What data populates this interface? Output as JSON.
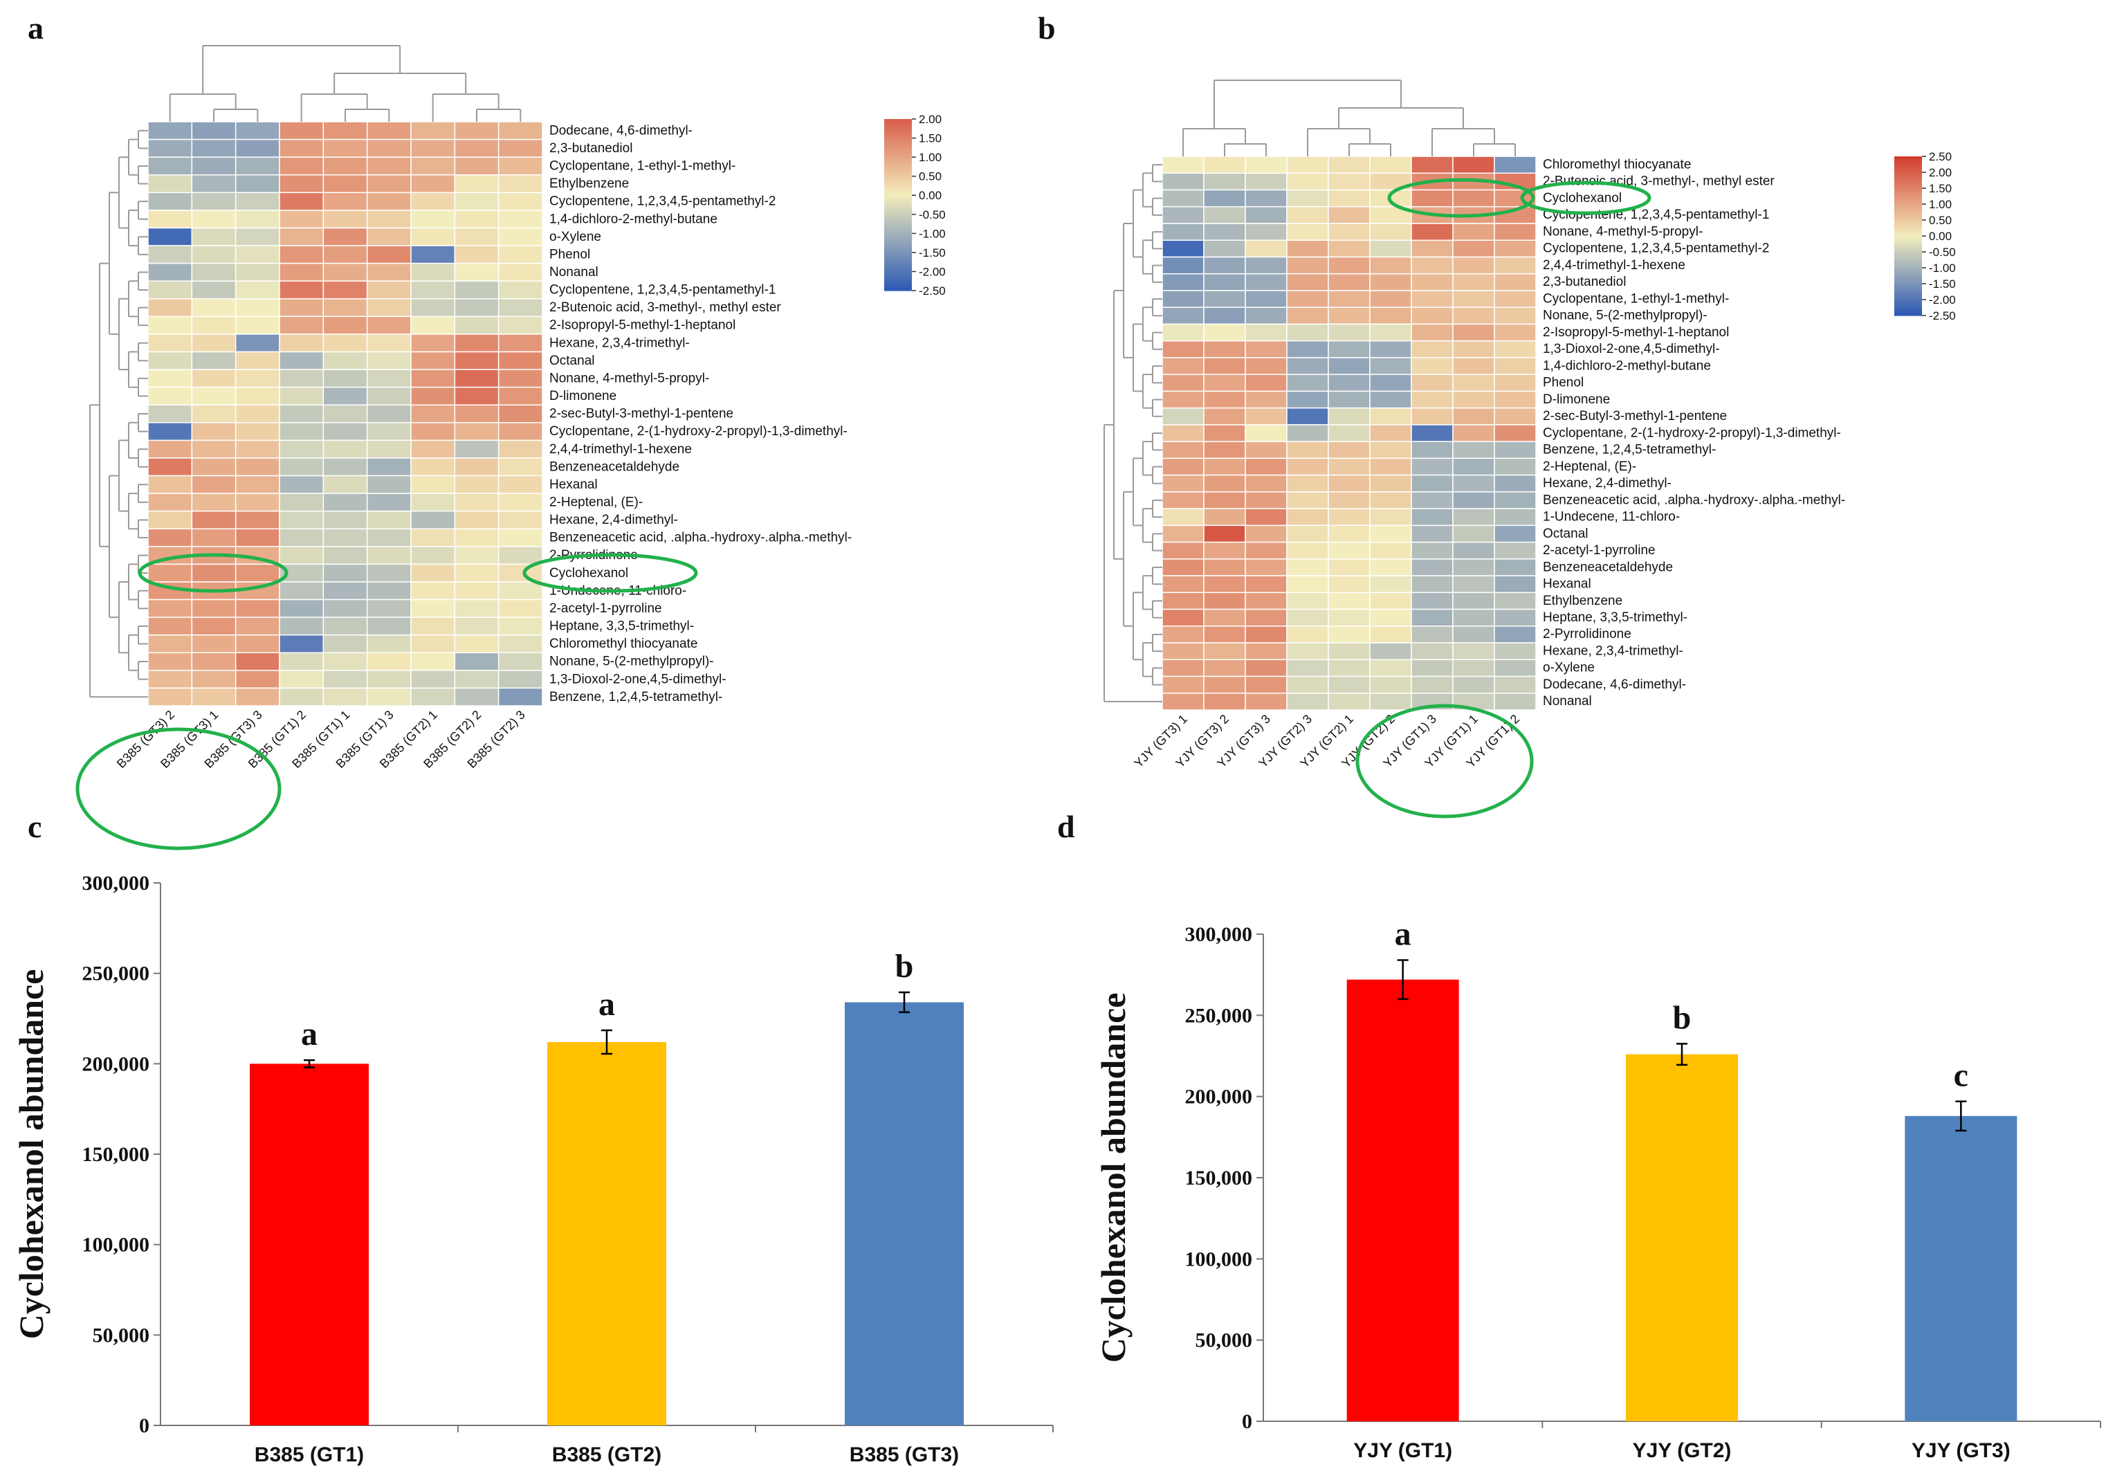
{
  "panels": {
    "a": "a",
    "b": "b",
    "c": "c",
    "d": "d"
  },
  "colors": {
    "low": "#2b58b4",
    "mid": "#f3edbd",
    "high": "#d23a2e",
    "highlight": "#22b14c",
    "gt1": "#ff0000",
    "gt2": "#ffc000",
    "gt3": "#4f81bd"
  },
  "chart_data": [
    {
      "id": "a",
      "type": "heatmap",
      "title": "",
      "colorbar": {
        "min": -2.5,
        "max": 2.0,
        "ticks": [
          "2.00",
          "1.50",
          "1.00",
          "0.50",
          "0.00",
          "-0.50",
          "-1.00",
          "-1.50",
          "-2.00",
          "-2.50"
        ]
      },
      "columns": [
        "B385 (GT3) 2",
        "B385 (GT3) 1",
        "B385 (GT3) 3",
        "B385 (GT1) 2",
        "B385 (GT1) 1",
        "B385 (GT1) 3",
        "B385 (GT2) 1",
        "B385 (GT2) 2",
        "B385 (GT2) 3"
      ],
      "rows": [
        "Dodecane, 4,6-dimethyl-",
        "2,3-butanediol",
        "Cyclopentane, 1-ethyl-1-methyl-",
        "Ethylbenzene",
        "Cyclopentene, 1,2,3,4,5-pentamethyl-2",
        "1,4-dichloro-2-methyl-butane",
        "o-Xylene",
        "Phenol",
        "Nonanal",
        "Cyclopentene, 1,2,3,4,5-pentamethyl-1",
        "2-Butenoic acid, 3-methyl-, methyl ester",
        "2-Isopropyl-5-methyl-1-heptanol",
        "Hexane, 2,3,4-trimethyl-",
        "Octanal",
        "Nonane, 4-methyl-5-propyl-",
        "D-limonene",
        "2-sec-Butyl-3-methyl-1-pentene",
        "Cyclopentane, 2-(1-hydroxy-2-propyl)-1,3-dimethyl-",
        "2,4,4-trimethyl-1-hexene",
        "Benzeneacetaldehyde",
        "Hexanal",
        "2-Heptenal, (E)-",
        "Hexane, 2,4-dimethyl-",
        "Benzeneacetic acid, .alpha.-hydroxy-.alpha.-methyl-",
        "2-Pyrrolidinone",
        "Cyclohexanol",
        "1-Undecene, 11-chloro-",
        "2-acetyl-1-pyrroline",
        "Heptane, 3,3,5-trimethyl-",
        "Chloromethyl thiocyanate",
        "Nonane, 5-(2-methylpropyl)-",
        "1,3-Dioxol-2-one,4,5-dimethyl-",
        "Benzene, 1,2,4,5-tetramethyl-"
      ],
      "values": [
        [
          -1.2,
          -1.3,
          -1.2,
          1.3,
          1.2,
          1.1,
          0.8,
          0.9,
          0.8
        ],
        [
          -1.1,
          -1.2,
          -1.3,
          1.1,
          1.0,
          1.0,
          0.9,
          1.0,
          1.0
        ],
        [
          -1.0,
          -1.1,
          -1.0,
          1.2,
          1.1,
          1.0,
          0.8,
          0.9,
          0.7
        ],
        [
          -0.3,
          -0.9,
          -1.0,
          1.3,
          1.2,
          1.0,
          0.9,
          0.1,
          0.2
        ],
        [
          -0.8,
          -0.6,
          -0.5,
          1.6,
          1.0,
          0.9,
          0.3,
          -0.1,
          0.1
        ],
        [
          0.1,
          0.0,
          -0.1,
          0.7,
          0.5,
          0.4,
          0.0,
          0.1,
          0.0
        ],
        [
          -2.2,
          -0.3,
          -0.4,
          0.8,
          1.3,
          0.6,
          0.1,
          0.2,
          0.0
        ],
        [
          -0.5,
          -0.3,
          -0.2,
          1.2,
          1.1,
          1.4,
          -1.8,
          0.3,
          0.1
        ],
        [
          -1.0,
          -0.5,
          -0.3,
          1.1,
          0.9,
          0.8,
          -0.3,
          0.0,
          0.1
        ],
        [
          -0.3,
          -0.6,
          -0.1,
          1.6,
          1.5,
          0.5,
          -0.4,
          -0.6,
          -0.2
        ],
        [
          0.5,
          0.0,
          0.0,
          0.9,
          0.8,
          0.4,
          -0.5,
          -0.6,
          -0.4
        ],
        [
          0.0,
          0.1,
          0.0,
          1.0,
          1.1,
          1.0,
          0.0,
          -0.3,
          -0.2
        ],
        [
          0.2,
          0.3,
          -1.5,
          0.4,
          0.3,
          0.2,
          1.0,
          1.4,
          1.2
        ],
        [
          -0.3,
          -0.6,
          0.3,
          -0.9,
          -0.3,
          -0.2,
          1.1,
          1.6,
          1.4
        ],
        [
          0.0,
          0.3,
          0.2,
          -0.5,
          -0.6,
          -0.4,
          1.2,
          1.8,
          1.3
        ],
        [
          0.0,
          0.0,
          0.1,
          -0.3,
          -0.9,
          -0.5,
          1.3,
          1.7,
          1.2
        ],
        [
          -0.5,
          0.2,
          0.3,
          -0.6,
          -0.5,
          -0.7,
          1.0,
          1.1,
          1.3
        ],
        [
          -2.0,
          0.6,
          0.4,
          -0.6,
          -0.7,
          -0.4,
          1.0,
          0.8,
          1.0
        ],
        [
          0.9,
          0.7,
          0.6,
          -0.4,
          -0.3,
          -0.3,
          0.6,
          -0.7,
          0.4
        ],
        [
          1.6,
          0.9,
          0.9,
          -0.6,
          -0.7,
          -1.0,
          0.3,
          0.5,
          0.2
        ],
        [
          0.6,
          1.0,
          0.8,
          -0.9,
          -0.3,
          -0.8,
          0.1,
          0.3,
          0.3
        ],
        [
          0.8,
          0.7,
          0.7,
          -0.5,
          -0.8,
          -0.9,
          -0.2,
          0.2,
          0.1
        ],
        [
          0.4,
          1.4,
          1.3,
          -0.4,
          -0.5,
          -0.3,
          -0.8,
          0.3,
          0.2
        ],
        [
          1.3,
          1.1,
          1.4,
          -0.5,
          -0.5,
          -0.5,
          0.2,
          0.1,
          0.0
        ],
        [
          1.0,
          1.1,
          0.9,
          -0.3,
          -0.5,
          -0.3,
          -0.3,
          -0.1,
          -0.3
        ],
        [
          1.1,
          1.3,
          1.2,
          -0.6,
          -0.8,
          -0.7,
          0.3,
          0.1,
          0.2
        ],
        [
          1.2,
          1.1,
          1.0,
          -0.7,
          -0.9,
          -0.8,
          0.1,
          0.1,
          -0.1
        ],
        [
          1.0,
          1.1,
          1.2,
          -1.0,
          -0.8,
          -0.7,
          0.0,
          -0.1,
          0.1
        ],
        [
          1.1,
          1.2,
          1.0,
          -0.8,
          -0.6,
          -0.7,
          0.2,
          -0.2,
          -0.1
        ],
        [
          0.8,
          0.9,
          1.0,
          -1.9,
          -0.5,
          -0.3,
          0.2,
          0.1,
          -0.2
        ],
        [
          0.9,
          1.0,
          1.6,
          -0.3,
          -0.2,
          0.1,
          0.0,
          -1.0,
          -0.4
        ],
        [
          0.7,
          0.8,
          1.2,
          -0.1,
          -0.4,
          -0.3,
          -0.5,
          -0.4,
          -0.6
        ],
        [
          0.6,
          0.5,
          0.8,
          -0.3,
          -0.2,
          -0.1,
          -0.4,
          -0.7,
          -1.4
        ]
      ]
    },
    {
      "id": "b",
      "type": "heatmap",
      "title": "",
      "colorbar": {
        "min": -2.5,
        "max": 2.5,
        "ticks": [
          "2.50",
          "2.00",
          "1.50",
          "1.00",
          "0.50",
          "0.00",
          "-0.50",
          "-1.00",
          "-1.50",
          "-2.00",
          "-2.50"
        ]
      },
      "columns": [
        "YJY (GT3) 1",
        "YJY (GT3) 2",
        "YJY (GT3) 3",
        "YJY (GT2) 3",
        "YJY (GT2) 1",
        "YJY (GT2) 2",
        "YJY (GT1) 3",
        "YJY (GT1) 1",
        "YJY (GT1) 2"
      ],
      "rows": [
        "Chloromethyl thiocyanate",
        "2-Butenoic acid, 3-methyl-, methyl ester",
        "Cyclohexanol",
        "Cyclopentene, 1,2,3,4,5-pentamethyl-1",
        "Nonane, 4-methyl-5-propyl-",
        "Cyclopentene, 1,2,3,4,5-pentamethyl-2",
        "2,4,4-trimethyl-1-hexene",
        "2,3-butanediol",
        "Cyclopentane, 1-ethyl-1-methyl-",
        "Nonane, 5-(2-methylpropyl)-",
        "2-Isopropyl-5-methyl-1-heptanol",
        "1,3-Dioxol-2-one,4,5-dimethyl-",
        "1,4-dichloro-2-methyl-butane",
        "Phenol",
        "D-limonene",
        "2-sec-Butyl-3-methyl-1-pentene",
        "Cyclopentane, 2-(1-hydroxy-2-propyl)-1,3-dimethyl-",
        "Benzene, 1,2,4,5-tetramethyl-",
        "2-Heptenal, (E)-",
        "Hexane, 2,4-dimethyl-",
        "Benzeneacetic acid, .alpha.-hydroxy-.alpha.-methyl-",
        "1-Undecene, 11-chloro-",
        "Octanal",
        "2-acetyl-1-pyrroline",
        "Benzeneacetaldehyde",
        "Hexanal",
        "Ethylbenzene",
        "Heptane, 3,3,5-trimethyl-",
        "2-Pyrrolidinone",
        "Hexane, 2,3,4-trimethyl-",
        "o-Xylene",
        "Dodecane, 4,6-dimethyl-",
        "Nonanal"
      ],
      "values": [
        [
          0.0,
          0.1,
          0.0,
          0.1,
          0.2,
          0.1,
          1.8,
          2.0,
          -1.5
        ],
        [
          -0.8,
          -0.6,
          -0.5,
          0.1,
          0.2,
          0.3,
          1.4,
          1.3,
          1.6
        ],
        [
          -0.8,
          -1.2,
          -1.1,
          -0.2,
          0.2,
          0.1,
          1.4,
          1.3,
          1.2
        ],
        [
          -0.9,
          -0.6,
          -1.0,
          0.2,
          0.6,
          0.1,
          1.0,
          1.1,
          1.3
        ],
        [
          -1.0,
          -0.9,
          -0.7,
          0.1,
          0.3,
          0.2,
          1.8,
          1.0,
          1.2
        ],
        [
          -2.2,
          -0.8,
          0.2,
          0.9,
          0.6,
          -0.3,
          0.8,
          1.1,
          0.9
        ],
        [
          -1.6,
          -1.2,
          -1.1,
          0.9,
          1.0,
          0.8,
          0.6,
          0.7,
          0.5
        ],
        [
          -1.4,
          -1.2,
          -1.1,
          1.0,
          1.0,
          0.9,
          0.7,
          0.6,
          0.7
        ],
        [
          -1.3,
          -1.1,
          -1.2,
          0.9,
          0.8,
          0.9,
          0.6,
          0.5,
          0.6
        ],
        [
          -1.2,
          -1.3,
          -1.1,
          0.8,
          0.7,
          0.8,
          0.7,
          0.6,
          0.5
        ],
        [
          -0.1,
          0.0,
          -0.2,
          -0.3,
          -0.3,
          -0.2,
          0.8,
          1.0,
          0.7
        ],
        [
          1.2,
          1.1,
          1.0,
          -1.2,
          -1.0,
          -1.1,
          0.4,
          0.5,
          0.3
        ],
        [
          1.0,
          1.2,
          1.1,
          -1.1,
          -1.2,
          -1.0,
          0.3,
          0.6,
          0.4
        ],
        [
          1.1,
          1.0,
          1.2,
          -1.0,
          -1.1,
          -1.2,
          0.5,
          0.4,
          0.5
        ],
        [
          1.0,
          1.1,
          0.9,
          -1.2,
          -1.0,
          -1.1,
          0.4,
          0.5,
          0.6
        ],
        [
          -0.4,
          1.0,
          0.6,
          -2.0,
          -0.3,
          0.2,
          0.5,
          0.8,
          0.7
        ],
        [
          0.6,
          1.2,
          0.0,
          -0.8,
          -0.3,
          0.6,
          -2.0,
          0.9,
          1.3
        ],
        [
          1.0,
          1.2,
          0.9,
          0.5,
          0.6,
          0.4,
          -1.0,
          -0.8,
          -0.9
        ],
        [
          1.1,
          1.0,
          1.2,
          0.6,
          0.5,
          0.6,
          -0.9,
          -1.0,
          -0.8
        ],
        [
          0.9,
          1.1,
          1.0,
          0.4,
          0.6,
          0.5,
          -1.0,
          -0.9,
          -1.1
        ],
        [
          1.0,
          1.2,
          1.1,
          0.3,
          0.5,
          0.4,
          -0.9,
          -1.1,
          -1.0
        ],
        [
          0.2,
          0.9,
          1.5,
          0.4,
          0.3,
          0.2,
          -1.0,
          -0.7,
          -0.8
        ],
        [
          0.8,
          2.1,
          0.9,
          0.2,
          0.1,
          0.0,
          -0.9,
          -0.6,
          -1.2
        ],
        [
          1.2,
          1.0,
          1.1,
          0.1,
          0.0,
          0.1,
          -0.8,
          -0.9,
          -0.7
        ],
        [
          1.3,
          1.1,
          1.0,
          0.0,
          0.1,
          0.0,
          -0.9,
          -0.8,
          -1.0
        ],
        [
          1.1,
          1.2,
          1.2,
          0.0,
          0.1,
          -0.1,
          -0.8,
          -0.7,
          -1.1
        ],
        [
          1.2,
          1.3,
          1.1,
          -0.1,
          0.0,
          0.1,
          -0.9,
          -0.8,
          -0.7
        ],
        [
          1.5,
          1.0,
          1.2,
          -0.2,
          -0.1,
          0.0,
          -1.0,
          -0.8,
          -0.9
        ],
        [
          1.0,
          1.2,
          1.4,
          0.1,
          0.0,
          0.1,
          -0.7,
          -0.8,
          -1.2
        ],
        [
          0.9,
          0.8,
          1.0,
          -0.2,
          -0.3,
          -0.7,
          -0.5,
          -0.4,
          -0.6
        ],
        [
          1.1,
          1.0,
          1.3,
          -0.4,
          -0.3,
          -0.2,
          -0.6,
          -0.5,
          -0.7
        ],
        [
          1.0,
          1.1,
          1.2,
          -0.3,
          -0.4,
          -0.3,
          -0.5,
          -0.6,
          -0.5
        ],
        [
          1.1,
          1.2,
          1.1,
          -0.4,
          -0.3,
          -0.4,
          -0.6,
          -0.5,
          -0.6
        ]
      ]
    },
    {
      "id": "c",
      "type": "bar",
      "title": "",
      "xlabel": "",
      "ylabel": "Cyclohexanol abundance",
      "ylim": [
        0,
        300000
      ],
      "yticks": [
        0,
        50000,
        100000,
        150000,
        200000,
        250000,
        300000
      ],
      "ytick_labels": [
        "0",
        "50,000",
        "100,000",
        "150,000",
        "200,000",
        "250,000",
        "300,000"
      ],
      "categories": [
        "B385 (GT1)",
        "B385 (GT2)",
        "B385 (GT3)"
      ],
      "values": [
        200000,
        212000,
        234000
      ],
      "errors": [
        2000,
        6500,
        5500
      ],
      "letters": [
        "a",
        "a",
        "b"
      ]
    },
    {
      "id": "d",
      "type": "bar",
      "title": "",
      "xlabel": "",
      "ylabel": "Cyclohexanol abundance",
      "ylim": [
        0,
        300000
      ],
      "yticks": [
        0,
        50000,
        100000,
        150000,
        200000,
        250000,
        300000
      ],
      "ytick_labels": [
        "0",
        "50,000",
        "100,000",
        "150,000",
        "200,000",
        "250,000",
        "300,000"
      ],
      "categories": [
        "YJY (GT1)",
        "YJY (GT2)",
        "YJY (GT3)"
      ],
      "values": [
        272000,
        226000,
        188000
      ],
      "errors": [
        12000,
        6500,
        9000
      ],
      "letters": [
        "a",
        "b",
        "c"
      ]
    }
  ]
}
